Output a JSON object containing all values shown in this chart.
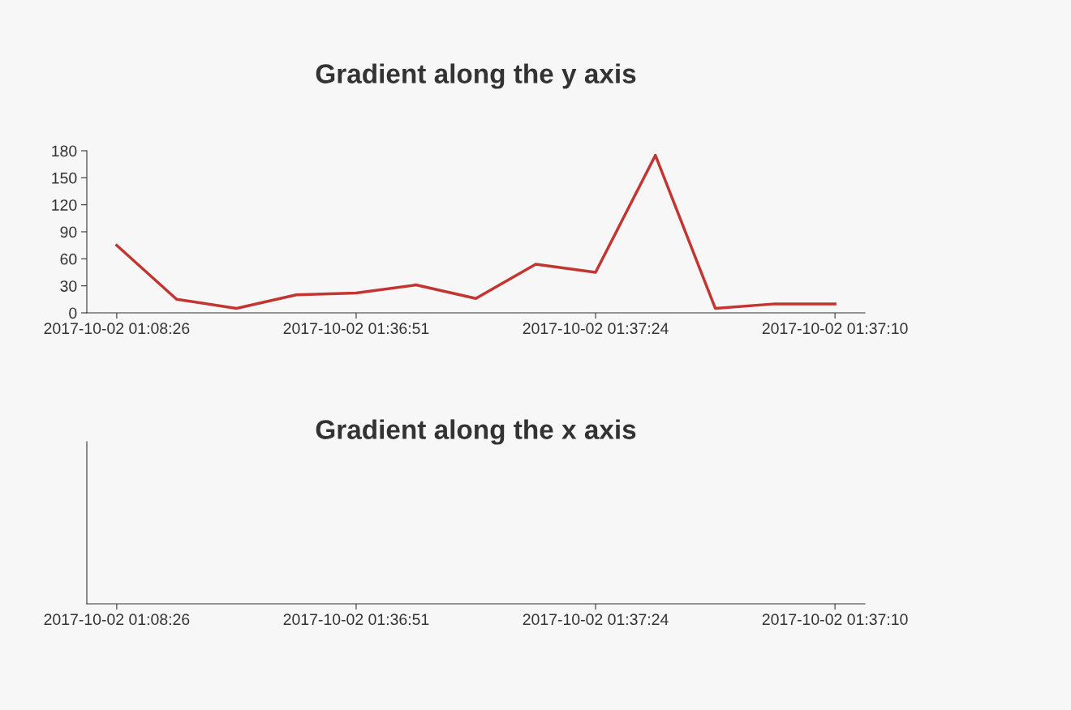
{
  "chart_data": [
    {
      "type": "line",
      "title": "Gradient along the y axis",
      "categories": [
        "2017-10-02 01:08:26",
        null,
        null,
        null,
        "2017-10-02 01:36:51",
        null,
        null,
        null,
        "2017-10-02 01:37:24",
        null,
        null,
        null,
        "2017-10-02 01:37:10"
      ],
      "series": [
        {
          "color": "#c23531",
          "values": [
            75,
            15,
            5,
            20,
            22,
            31,
            16,
            54,
            45,
            175,
            5,
            10,
            10
          ]
        }
      ],
      "ylim": [
        0,
        180
      ],
      "yticks": [
        0,
        30,
        60,
        90,
        120,
        150,
        180
      ],
      "grid": false,
      "legend": false
    },
    {
      "type": "other",
      "title": "Gradient along the x axis",
      "categories": [
        "2017-10-02 01:08:26",
        null,
        null,
        null,
        "2017-10-02 01:36:51",
        null,
        null,
        null,
        "2017-10-02 01:37:24",
        null,
        null,
        null,
        "2017-10-02 01:37:10"
      ],
      "legend": false
    }
  ]
}
